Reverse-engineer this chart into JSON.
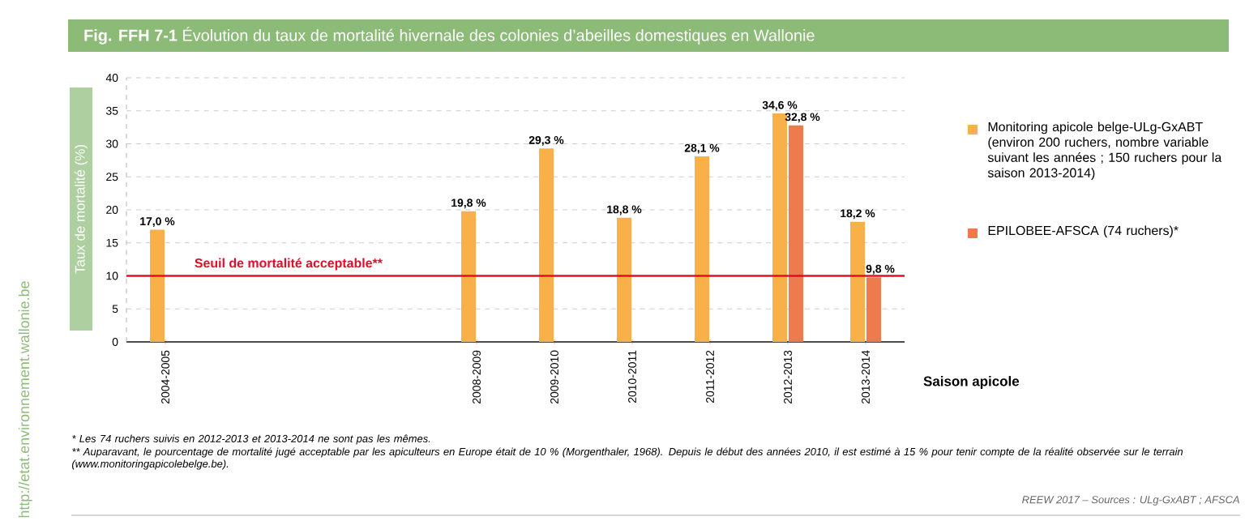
{
  "chart_data": {
    "type": "bar",
    "title": "**Fig. FFH 7-1** Évolution du taux de mortalité hivernale des colonies d’abeilles domestiques en Wallonie",
    "xlabel": "Saison apicole",
    "ylabel": "Taux de mortalité (%)",
    "categories": [
      "2004-2005",
      null,
      null,
      null,
      "2008-2009",
      "2009-2010",
      "2010-2011",
      "2011-2012",
      "2012-2013",
      "2013-2014"
    ],
    "series": [
      {
        "name": "Monitoring apicole belge-ULg-GxABT (environ 200 ruchers, nombre variable suivant les années ; 150 ruchers pour la saison 2013-2014)",
        "color": "#f7b04a",
        "values": [
          17.0,
          null,
          null,
          null,
          19.8,
          29.3,
          18.8,
          28.1,
          34.6,
          18.2
        ],
        "value_labels": [
          "17,0 %",
          null,
          null,
          null,
          "19,8 %",
          "29,3 %",
          "18,8 %",
          "28,1 %",
          "34,6 %",
          "18,2 %"
        ]
      },
      {
        "name": "EPILOBEE-AFSCA (74 ruchers)*",
        "color": "#ef7a4c",
        "values": [
          null,
          null,
          null,
          null,
          null,
          null,
          null,
          null,
          32.8,
          9.8
        ],
        "value_labels": [
          null,
          null,
          null,
          null,
          null,
          null,
          null,
          null,
          "32,8 %",
          "9,8 %"
        ]
      }
    ],
    "ylim": [
      0,
      40
    ],
    "yticks": [
      0,
      5,
      10,
      15,
      20,
      25,
      30,
      35,
      40
    ],
    "grid": "y",
    "legend": "right",
    "ref_lines": [
      {
        "axis": "y",
        "value": 10,
        "label": "Seuil de mortalité acceptable**",
        "color": "#e30c29"
      }
    ],
    "annotations": [
      "* Les 74 ruchers suivis en 2012-2013 et 2013-2014 ne sont pas les mêmes.",
      "** Auparavant, le pourcentage de mortalité jugé acceptable par les apiculteurs en Europe était de 10 % (Morgenthaler, 1968). Depuis le début des années 2010, il est estimé à 15 % pour tenir compte de la réalité observée sur le terrain (www.monitoringapicolebelge.be).",
      "REEW 2017 – Sources : ULg-GxABT ; AFSCA",
      "http://etat.environnement.wallonie.be"
    ]
  }
}
